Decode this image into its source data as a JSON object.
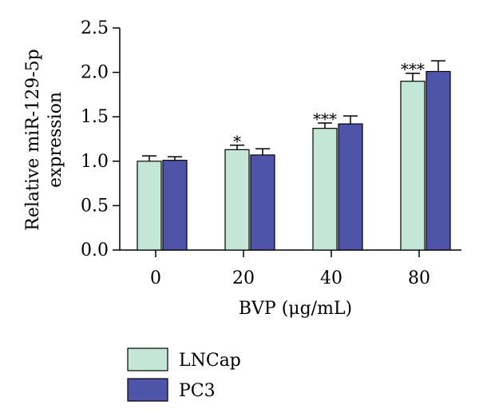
{
  "chart_data": {
    "type": "bar",
    "title": "",
    "xlabel": "BVP (μg/mL)",
    "ylabel_lines": [
      "Relative miR-129-5p",
      "expression"
    ],
    "categories": [
      "0",
      "20",
      "40",
      "80"
    ],
    "ylim": [
      0,
      2.5
    ],
    "yticks": [
      "0.0",
      "0.5",
      "1.0",
      "1.5",
      "2.0",
      "2.5"
    ],
    "series": [
      {
        "name": "LNCap",
        "color": "#c4e6d6",
        "values": [
          1.0,
          1.13,
          1.37,
          1.9
        ],
        "errors": [
          0.06,
          0.05,
          0.06,
          0.09
        ],
        "significance": [
          "",
          "*",
          "***",
          "***"
        ]
      },
      {
        "name": "PC3",
        "color": "#4e55a8",
        "values": [
          1.01,
          1.07,
          1.42,
          2.01
        ],
        "errors": [
          0.04,
          0.07,
          0.09,
          0.12
        ],
        "significance": [
          "",
          "",
          "",
          ""
        ]
      }
    ],
    "legend_position": "bottom-left",
    "grid": false
  }
}
